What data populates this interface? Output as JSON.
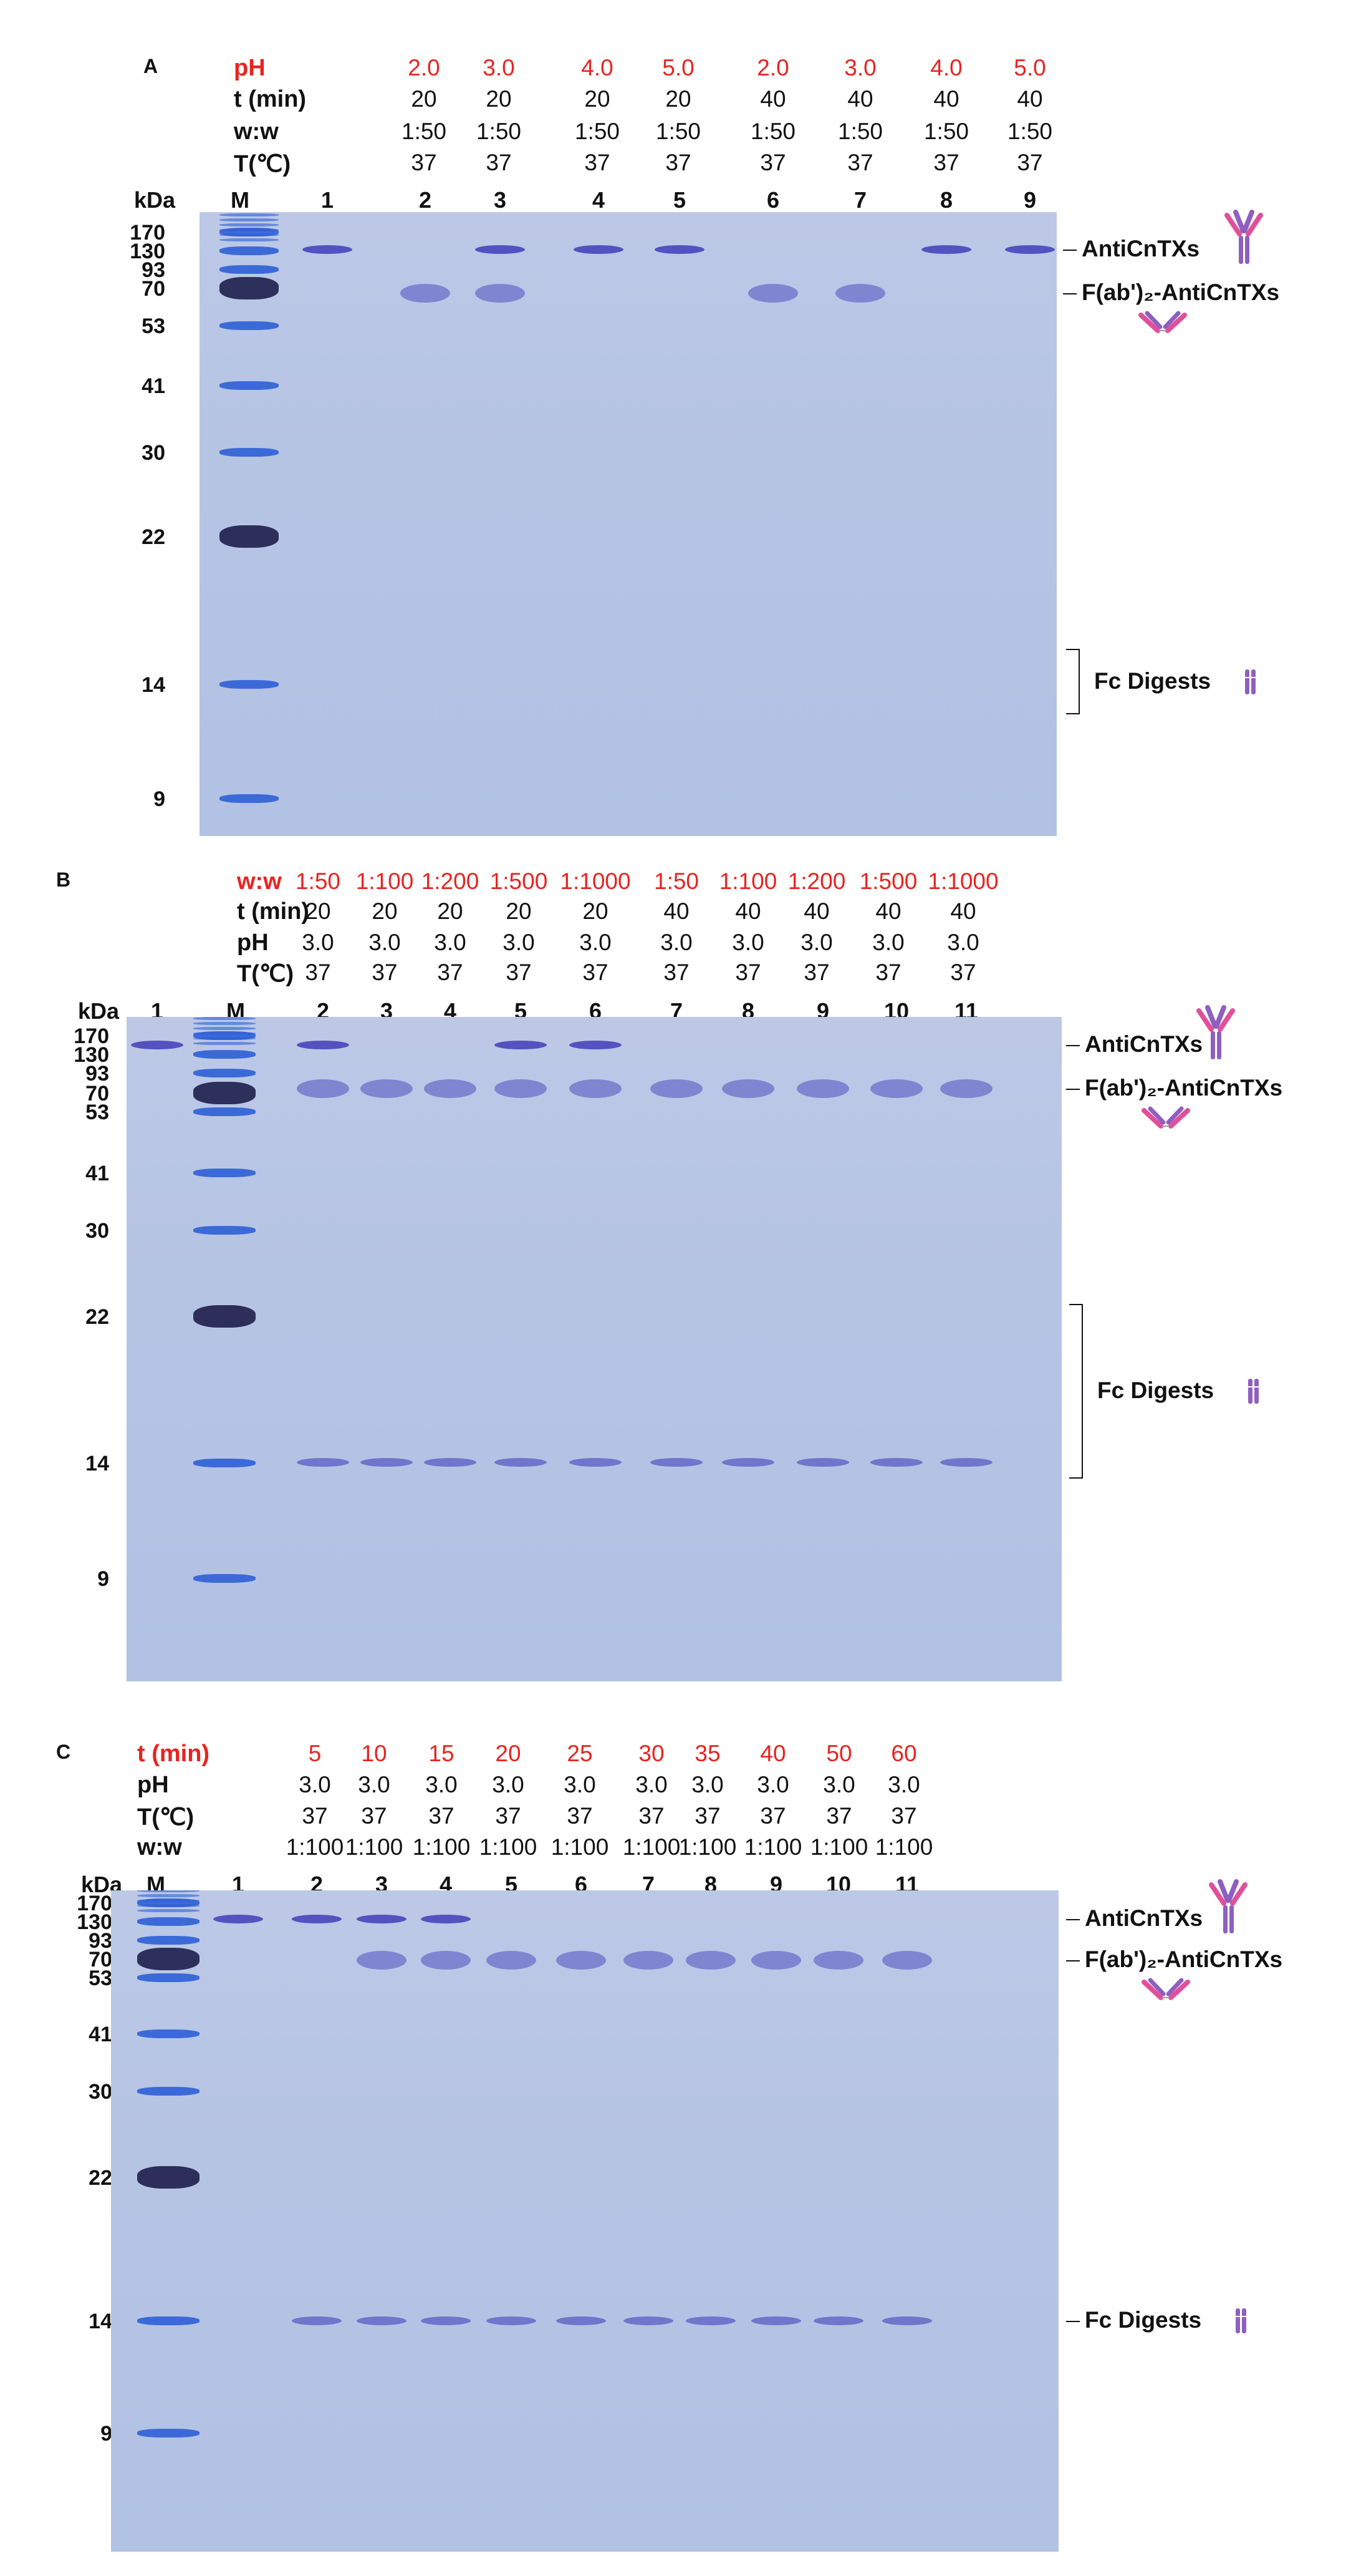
{
  "colors": {
    "highlight": "#e8231f",
    "gel_background": "#b8c6e6",
    "band": "#3a35b8",
    "ladder": "#2d5fd6",
    "ladder_dark": "#1e1f4a",
    "icon_purple": "#8e5fc0",
    "icon_pink": "#e0509a"
  },
  "kda_title": "kDa",
  "lane_marker": "M",
  "kda_markers": [
    "170",
    "130",
    "93",
    "70",
    "53",
    "41",
    "30",
    "22",
    "14",
    "9"
  ],
  "panels": [
    {
      "letter": "A",
      "conditions": [
        {
          "name": "pH",
          "highlight": true,
          "values": [
            "2.0",
            "3.0",
            "4.0",
            "5.0",
            "2.0",
            "3.0",
            "4.0",
            "5.0"
          ]
        },
        {
          "name": "t (min)",
          "highlight": false,
          "values": [
            "20",
            "20",
            "20",
            "20",
            "40",
            "40",
            "40",
            "40"
          ]
        },
        {
          "name": "w:w",
          "highlight": false,
          "values": [
            "1:50",
            "1:50",
            "1:50",
            "1:50",
            "1:50",
            "1:50",
            "1:50",
            "1:50"
          ]
        },
        {
          "name": "T(℃)",
          "highlight": false,
          "values": [
            "37",
            "37",
            "37",
            "37",
            "37",
            "37",
            "37",
            "37"
          ]
        }
      ],
      "lanes": [
        "M",
        "1",
        "2",
        "3",
        "4",
        "5",
        "6",
        "7",
        "8",
        "9"
      ],
      "annotations": {
        "intact": "AntiCnTXs",
        "fab": "F(ab')₂-AntiCnTXs",
        "fc": "Fc Digests"
      }
    },
    {
      "letter": "B",
      "conditions": [
        {
          "name": "w:w",
          "highlight": true,
          "values": [
            "1:50",
            "1:100",
            "1:200",
            "1:500",
            "1:1000",
            "1:50",
            "1:100",
            "1:200",
            "1:500",
            "1:1000"
          ]
        },
        {
          "name": "t (min)",
          "highlight": false,
          "values": [
            "20",
            "20",
            "20",
            "20",
            "20",
            "40",
            "40",
            "40",
            "40",
            "40"
          ]
        },
        {
          "name": "pH",
          "highlight": false,
          "values": [
            "3.0",
            "3.0",
            "3.0",
            "3.0",
            "3.0",
            "3.0",
            "3.0",
            "3.0",
            "3.0",
            "3.0"
          ]
        },
        {
          "name": "T(℃)",
          "highlight": false,
          "values": [
            "37",
            "37",
            "37",
            "37",
            "37",
            "37",
            "37",
            "37",
            "37",
            "37"
          ]
        }
      ],
      "lanes": [
        "1",
        "M",
        "2",
        "3",
        "4",
        "5",
        "6",
        "7",
        "8",
        "9",
        "10",
        "11"
      ],
      "annotations": {
        "intact": "AntiCnTXs",
        "fab": "F(ab')₂-AntiCnTXs",
        "fc": "Fc Digests"
      }
    },
    {
      "letter": "C",
      "conditions": [
        {
          "name": "t (min)",
          "highlight": true,
          "values": [
            "5",
            "10",
            "15",
            "20",
            "25",
            "30",
            "35",
            "40",
            "50",
            "60"
          ]
        },
        {
          "name": "pH",
          "highlight": false,
          "values": [
            "3.0",
            "3.0",
            "3.0",
            "3.0",
            "3.0",
            "3.0",
            "3.0",
            "3.0",
            "3.0",
            "3.0"
          ]
        },
        {
          "name": "T(℃)",
          "highlight": false,
          "values": [
            "37",
            "37",
            "37",
            "37",
            "37",
            "37",
            "37",
            "37",
            "37",
            "37"
          ]
        },
        {
          "name": "w:w",
          "highlight": false,
          "values": [
            "1:100",
            "1:100",
            "1:100",
            "1:100",
            "1:100",
            "1:100",
            "1:100",
            "1:100",
            "1:100",
            "1:100"
          ]
        }
      ],
      "lanes": [
        "M",
        "1",
        "2",
        "3",
        "4",
        "5",
        "6",
        "7",
        "8",
        "9",
        "10",
        "11"
      ],
      "annotations": {
        "intact": "AntiCnTXs",
        "fab": "F(ab')₂-AntiCnTXs",
        "fc": "Fc Digests"
      }
    }
  ]
}
